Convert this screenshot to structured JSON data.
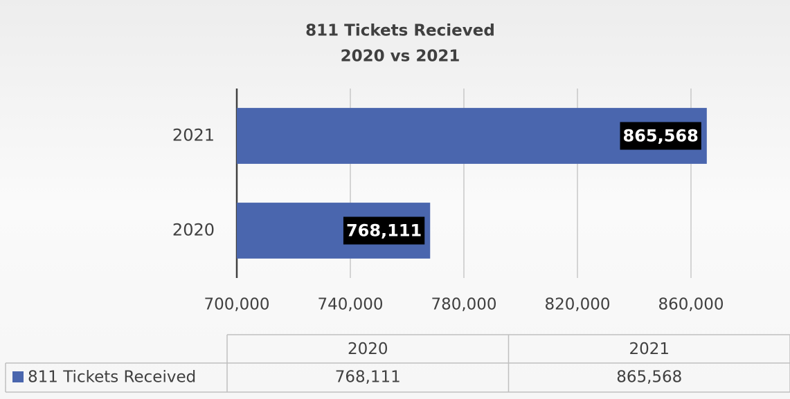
{
  "chart_data": {
    "type": "bar",
    "orientation": "horizontal",
    "title": "811 Tickets Recieved",
    "subtitle": "2020 vs 2021",
    "categories": [
      "2020",
      "2021"
    ],
    "series": [
      {
        "name": "811 Tickets Received",
        "color": "#4a66ae",
        "values": [
          768111,
          865568
        ],
        "value_labels": [
          "768,111",
          "865,568"
        ]
      }
    ],
    "xlim": [
      700000,
      870000
    ],
    "xticks": [
      {
        "value": 700000,
        "label": "700,000"
      },
      {
        "value": 740000,
        "label": "740,000"
      },
      {
        "value": 780000,
        "label": "780,000"
      },
      {
        "value": 820000,
        "label": "820,000"
      },
      {
        "value": 860000,
        "label": "860,000"
      }
    ],
    "grid": true,
    "data_table": true
  }
}
